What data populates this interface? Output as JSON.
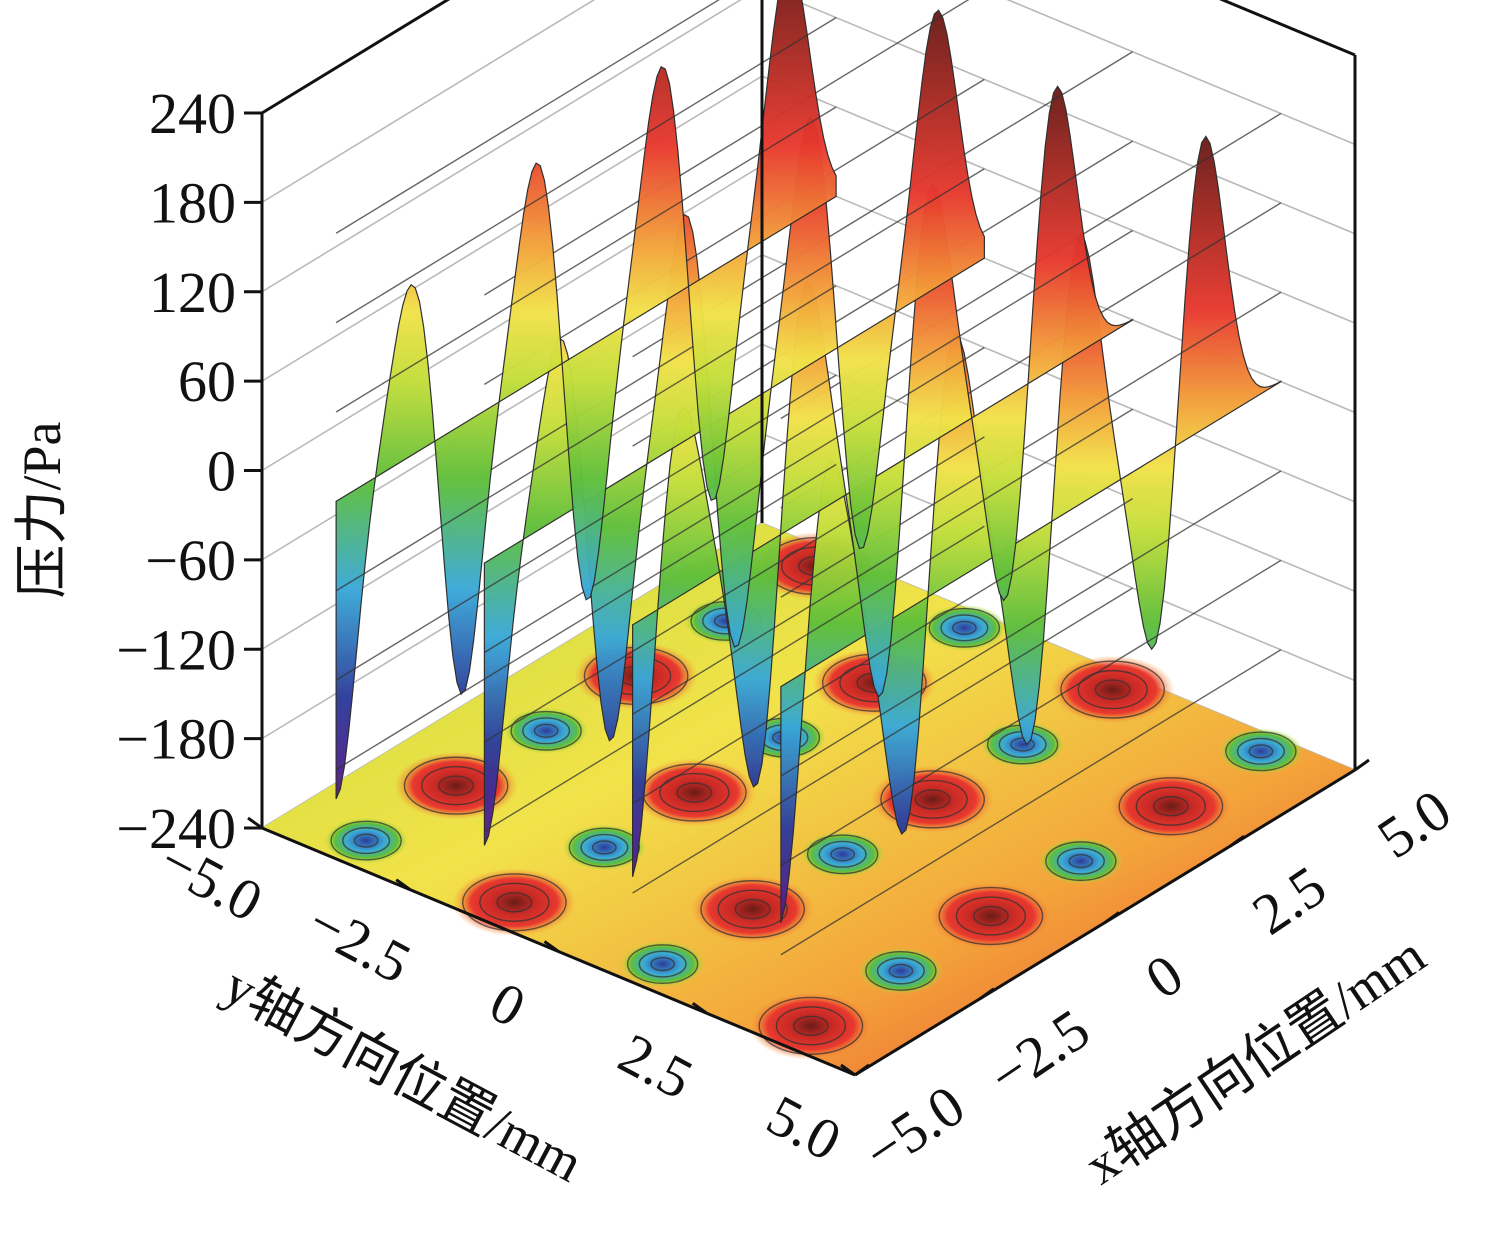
{
  "chart_data": {
    "type": "surface",
    "title": "",
    "zlabel": "压力/Pa",
    "ylabel": "y轴方向位置/mm",
    "xlabel": "x轴方向位置/mm",
    "z_ticks": [
      "240",
      "180",
      "120",
      "60",
      "0",
      "−60",
      "−120",
      "−180",
      "−240"
    ],
    "z_tick_values": [
      240,
      180,
      120,
      60,
      0,
      -60,
      -120,
      -180,
      -240
    ],
    "y_ticks": [
      "−5.0",
      "−2.5",
      "0",
      "2.5",
      "5.0"
    ],
    "y_tick_values": [
      -5.0,
      -2.5,
      0,
      2.5,
      5.0
    ],
    "x_ticks": [
      "−5.0",
      "−2.5",
      "0",
      "2.5",
      "5.0"
    ],
    "x_tick_values": [
      -5.0,
      -2.5,
      0,
      2.5,
      5.0
    ],
    "zlim": [
      -240,
      240
    ],
    "xlim": [
      -5.0,
      5.0
    ],
    "ylim": [
      -5.0,
      5.0
    ],
    "grid": true,
    "projected_contour_on_floor": true,
    "colormap": [
      "#5b1a8c",
      "#2e3c9a",
      "#3aa9d8",
      "#5fbf3a",
      "#c4de3a",
      "#f2e24a",
      "#f3a23a",
      "#e8392f",
      "#7a1f1a"
    ],
    "rows": [
      {
        "row_y": -3.75,
        "peak_pressure": 140,
        "trough_pressure": -205
      },
      {
        "row_y": -1.25,
        "peak_pressure": 160,
        "trough_pressure": -195
      },
      {
        "row_y": 1.25,
        "peak_pressure": 180,
        "trough_pressure": -185
      },
      {
        "row_y": 3.75,
        "peak_pressure": 200,
        "trough_pressure": -175
      }
    ],
    "series": [
      {
        "name": "",
        "x": [
          -3.75,
          -1.25,
          1.25,
          3.75
        ],
        "peaks": [
          140,
          175,
          190,
          205
        ],
        "troughs": [
          -205,
          -195,
          -185,
          -170
        ]
      }
    ]
  }
}
